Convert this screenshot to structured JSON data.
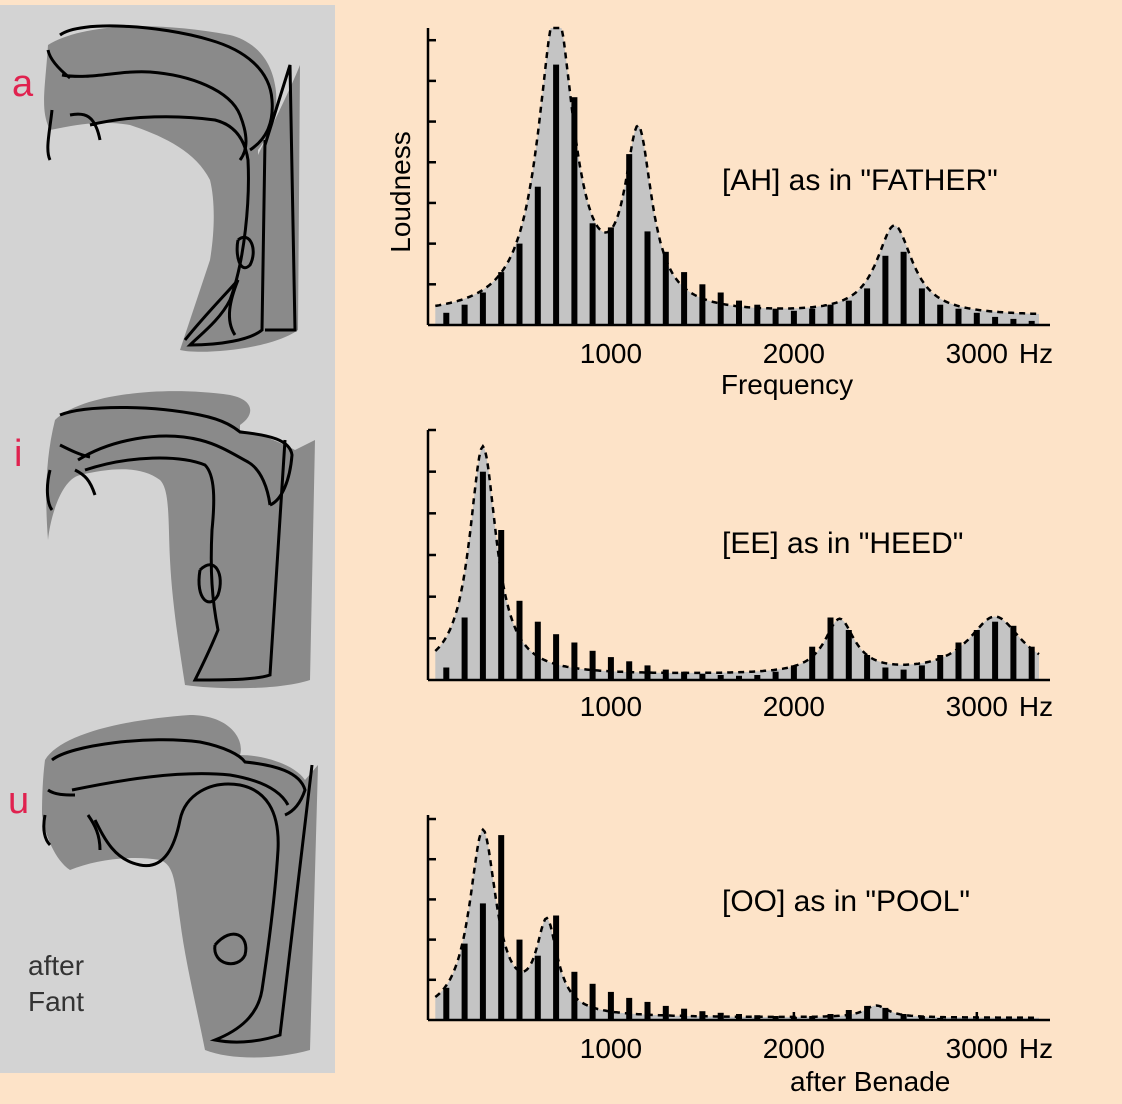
{
  "figure": {
    "vowel_labels": [
      "a",
      "i",
      "u"
    ],
    "left_credit_line1": "after",
    "left_credit_line2": "Fant",
    "right_credit": "after Benade"
  },
  "colors": {
    "background": "#fde3c8",
    "panel": "#d3d3d3",
    "tract_fill": "#8a8a8a",
    "vowel_label": "#e0224f",
    "spectrum_fill": "#c4c4c4",
    "bar": "#000000"
  },
  "chart_data": [
    {
      "type": "bar",
      "title": "[AH] as in \"FATHER\"",
      "xlabel": "Frequency",
      "ylabel": "Loudness",
      "x_ticks": [
        "1000",
        "2000",
        "3000"
      ],
      "x_unit": "Hz",
      "xlim": [
        0,
        3400
      ],
      "ylim": [
        0,
        7.3
      ],
      "y_ticks": [
        1,
        2,
        3,
        4,
        5,
        6,
        7
      ],
      "harmonic_spacing_hz": 100,
      "envelope": "dashed",
      "formants": [
        {
          "f": 700,
          "a": 7.4,
          "w": 120
        },
        {
          "f": 1150,
          "a": 4.2,
          "w": 90
        },
        {
          "f": 2550,
          "a": 2.2,
          "w": 120
        }
      ],
      "envelope_floor": 0.2,
      "x": [
        100,
        200,
        300,
        400,
        500,
        600,
        700,
        800,
        900,
        1000,
        1100,
        1200,
        1300,
        1400,
        1500,
        1600,
        1700,
        1800,
        1900,
        2000,
        2100,
        2200,
        2300,
        2400,
        2500,
        2600,
        2700,
        2800,
        2900,
        3000,
        3100,
        3200,
        3300
      ],
      "values": [
        0.3,
        0.5,
        0.8,
        1.3,
        2.0,
        3.4,
        6.4,
        5.6,
        2.5,
        2.4,
        4.2,
        2.3,
        1.8,
        1.3,
        1.0,
        0.8,
        0.6,
        0.5,
        0.4,
        0.35,
        0.4,
        0.5,
        0.6,
        0.9,
        1.7,
        1.8,
        0.9,
        0.5,
        0.4,
        0.3,
        0.2,
        0.15,
        0.1
      ]
    },
    {
      "type": "bar",
      "title": "[EE] as in \"HEED\"",
      "x_ticks": [
        "1000",
        "2000",
        "3000"
      ],
      "x_unit": "Hz",
      "xlim": [
        0,
        3400
      ],
      "ylim": [
        0,
        6.0
      ],
      "y_ticks": [
        1,
        2,
        3,
        4,
        5,
        6
      ],
      "harmonic_spacing_hz": 100,
      "envelope": "dashed",
      "formants": [
        {
          "f": 300,
          "a": 5.5,
          "w": 90
        },
        {
          "f": 2250,
          "a": 1.3,
          "w": 100
        },
        {
          "f": 3100,
          "a": 1.4,
          "w": 180
        }
      ],
      "envelope_floor": 0.1,
      "x": [
        100,
        200,
        300,
        400,
        500,
        600,
        700,
        800,
        900,
        1000,
        1100,
        1200,
        1300,
        1400,
        1500,
        1600,
        1700,
        1800,
        1900,
        2000,
        2100,
        2200,
        2300,
        2400,
        2500,
        2600,
        2700,
        2800,
        2900,
        3000,
        3100,
        3200,
        3300
      ],
      "values": [
        0.3,
        1.5,
        5.0,
        3.6,
        1.9,
        1.4,
        1.1,
        0.9,
        0.7,
        0.55,
        0.45,
        0.35,
        0.25,
        0.2,
        0.15,
        0.12,
        0.1,
        0.12,
        0.2,
        0.35,
        0.8,
        1.5,
        1.2,
        0.6,
        0.3,
        0.25,
        0.35,
        0.6,
        0.9,
        1.2,
        1.4,
        1.3,
        0.8
      ]
    },
    {
      "type": "bar",
      "title": "[OO] as in \"POOL\"",
      "x_ticks": [
        "1000",
        "2000",
        "3000"
      ],
      "x_unit": "Hz",
      "xlim": [
        0,
        3400
      ],
      "ylim": [
        0,
        5.1
      ],
      "y_ticks": [
        1,
        2,
        3,
        4,
        5
      ],
      "harmonic_spacing_hz": 100,
      "envelope": "dashed",
      "formants": [
        {
          "f": 300,
          "a": 4.6,
          "w": 90
        },
        {
          "f": 650,
          "a": 2.2,
          "w": 70
        },
        {
          "f": 2450,
          "a": 0.3,
          "w": 80
        }
      ],
      "envelope_floor": 0.05,
      "x": [
        100,
        200,
        300,
        400,
        500,
        600,
        700,
        800,
        900,
        1000,
        1100,
        1200,
        1300,
        1400,
        1500,
        1600,
        1700,
        1800,
        1900,
        2000,
        2100,
        2200,
        2300,
        2400,
        2500,
        2600,
        2700,
        2800,
        2900,
        3000,
        3100,
        3200,
        3300
      ],
      "values": [
        0.8,
        1.9,
        2.9,
        4.6,
        2.0,
        1.6,
        2.6,
        1.2,
        0.9,
        0.7,
        0.55,
        0.45,
        0.35,
        0.28,
        0.22,
        0.18,
        0.15,
        0.12,
        0.1,
        0.08,
        0.1,
        0.15,
        0.25,
        0.35,
        0.3,
        0.15,
        0.1,
        0.05,
        0.03,
        0.02,
        0.02,
        0.01,
        0.01
      ]
    }
  ]
}
